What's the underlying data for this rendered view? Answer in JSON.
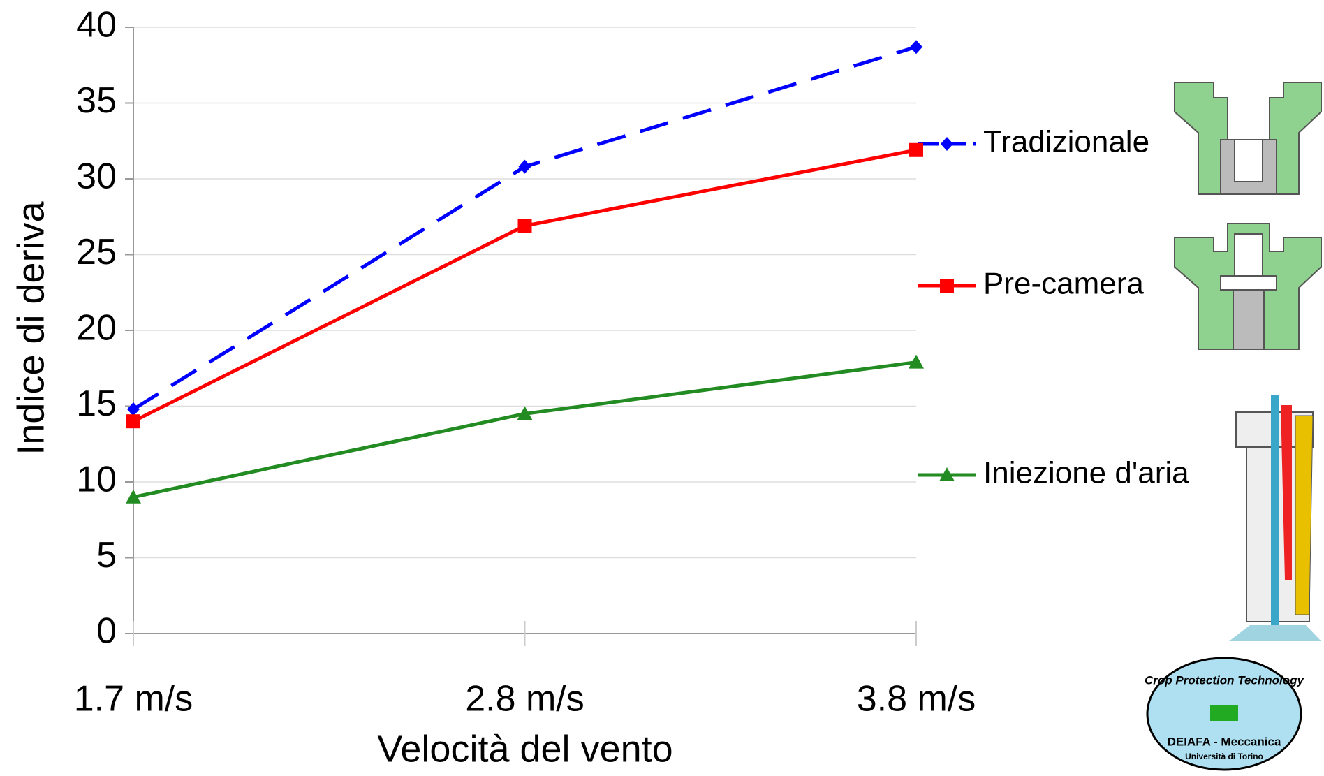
{
  "chart_data": {
    "type": "line",
    "categories": [
      "1.7 m/s",
      "2.8 m/s",
      "3.8 m/s"
    ],
    "xlabel": "Velocità del vento",
    "ylabel": "Indice di deriva",
    "ylim": [
      0,
      40
    ],
    "yticks": [
      0,
      5,
      10,
      15,
      20,
      25,
      30,
      35,
      40
    ],
    "grid": true,
    "legend": "right",
    "series": [
      {
        "name": "Tradizionale",
        "color": "#0000ff",
        "marker": "diamond",
        "line_style": "dashed",
        "values": [
          14.8,
          30.8,
          38.7
        ]
      },
      {
        "name": "Pre-camera",
        "color": "#ff0000",
        "marker": "square",
        "line_style": "solid",
        "values": [
          14,
          26.9,
          31.9
        ]
      },
      {
        "name": "Iniezione d'aria",
        "color": "#228b22",
        "marker": "triangle",
        "line_style": "solid",
        "values": [
          9,
          14.5,
          17.9
        ]
      }
    ]
  },
  "logo": {
    "ring": "Crop Protection Technology",
    "name": "DEIAFA - Meccanica",
    "place": "Università di Torino"
  }
}
